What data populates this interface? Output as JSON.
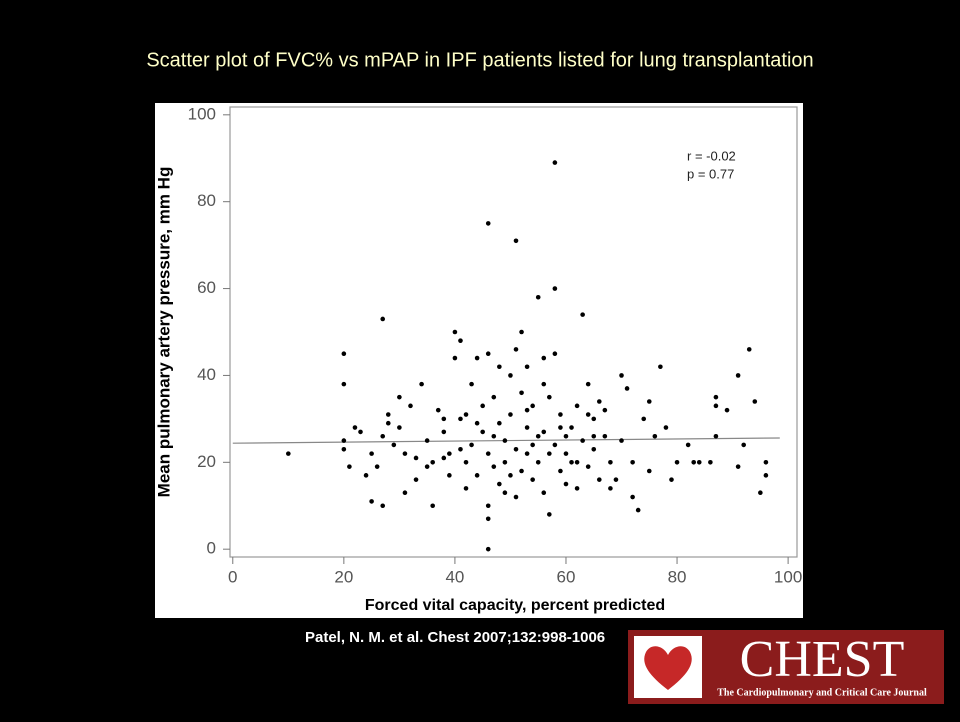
{
  "chart_data": {
    "type": "scatter",
    "title": "Scatter plot of FVC% vs mPAP in IPF patients listed for lung transplantation",
    "x_label": "Forced vital capacity, percent predicted",
    "y_label": "Mean pulmonary artery pressure, mm Hg",
    "annotations": [
      "r  = -0.02",
      "p =  0.77"
    ],
    "xlim": [
      -0.5,
      101.6
    ],
    "ylim": [
      -1.8,
      101.8
    ],
    "xticks": [
      0,
      20,
      40,
      60,
      80,
      100
    ],
    "yticks": [
      0,
      20,
      40,
      60,
      80,
      100
    ],
    "color": "#000000",
    "fit_line": {
      "x": [
        0,
        98.5
      ],
      "y": [
        24.4,
        25.6
      ]
    },
    "x": [
      10,
      20,
      20,
      20,
      20,
      21,
      22,
      23,
      24,
      25,
      25,
      26,
      27,
      27,
      27,
      28,
      29,
      30,
      30,
      31,
      32,
      33,
      33,
      34,
      35,
      35,
      36,
      37,
      38,
      39,
      39,
      40,
      40,
      41,
      41,
      42,
      42,
      43,
      43,
      44,
      44,
      45,
      45,
      46,
      46,
      46,
      46,
      46,
      46,
      47,
      47,
      48,
      48,
      48,
      49,
      49,
      50,
      50,
      51,
      51,
      51,
      51,
      52,
      52,
      52,
      53,
      53,
      53,
      54,
      54,
      55,
      55,
      55,
      56,
      56,
      56,
      57,
      57,
      58,
      58,
      58,
      58,
      59,
      59,
      60,
      60,
      61,
      61,
      62,
      62,
      63,
      63,
      64,
      64,
      65,
      65,
      66,
      66,
      67,
      68,
      68,
      70,
      70,
      71,
      72,
      72,
      73,
      74,
      75,
      75,
      76,
      77,
      78,
      79,
      80,
      82,
      83,
      84,
      86,
      87,
      87,
      87,
      89,
      91,
      91,
      92,
      93,
      94,
      95,
      96,
      96,
      28,
      31,
      36,
      38,
      41,
      44,
      47,
      50,
      53,
      56,
      59,
      62,
      65,
      38,
      42,
      49,
      54,
      57,
      60,
      64,
      67,
      69
    ],
    "y": [
      22,
      45,
      38,
      25,
      23,
      19,
      28,
      27,
      17,
      11,
      22,
      19,
      53,
      10,
      26,
      31,
      24,
      35,
      28,
      13,
      33,
      21,
      16,
      38,
      25,
      19,
      10,
      32,
      27,
      22,
      17,
      50,
      44,
      48,
      30,
      20,
      14,
      38,
      24,
      44,
      17,
      33,
      27,
      75,
      45,
      22,
      10,
      0,
      7,
      35,
      19,
      42,
      29,
      15,
      25,
      20,
      40,
      31,
      71,
      46,
      23,
      12,
      50,
      36,
      18,
      42,
      28,
      22,
      33,
      16,
      58,
      26,
      20,
      44,
      38,
      13,
      35,
      8,
      89,
      60,
      45,
      24,
      31,
      18,
      22,
      15,
      28,
      20,
      33,
      14,
      54,
      25,
      38,
      19,
      30,
      23,
      34,
      16,
      26,
      20,
      14,
      40,
      25,
      37,
      20,
      12,
      9,
      30,
      34,
      18,
      26,
      42,
      28,
      16,
      20,
      24,
      20,
      20,
      20,
      35,
      33,
      26,
      32,
      40,
      19,
      24,
      46,
      34,
      13,
      20,
      17,
      29,
      22,
      20,
      30,
      23,
      29,
      26,
      17,
      32,
      27,
      28,
      20,
      26,
      21,
      31,
      13,
      24,
      22,
      26,
      31,
      32,
      16
    ]
  },
  "source": "Patel, N. M. et al. Chest 2007;132:998-1006",
  "logo": {
    "title": "CHEST",
    "subtitle": "The Cardiopulmonary and Critical Care Journal"
  }
}
